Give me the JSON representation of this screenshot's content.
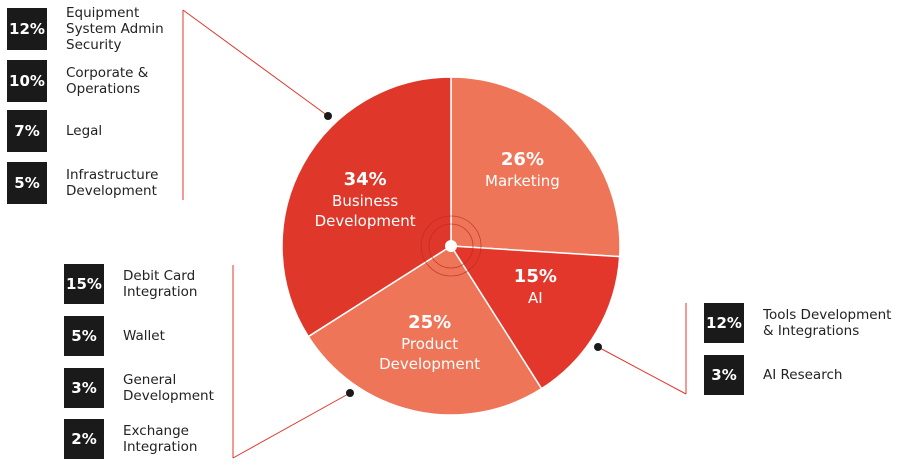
{
  "chart_data": {
    "type": "pie",
    "categories": [
      "Marketing",
      "AI",
      "Product Development",
      "Business Development"
    ],
    "values": [
      26,
      15,
      25,
      34
    ],
    "value_labels": [
      "26%",
      "15%",
      "25%",
      "34%"
    ],
    "colors": [
      "#ef7558",
      "#e3372b",
      "#ef7558",
      "#e0372b"
    ],
    "breakdowns": [
      {
        "labels": [
          "Equipment System Admin Security",
          "Corporate & Operations",
          "Legal",
          "Infrastructure Development"
        ],
        "values": [
          12,
          10,
          7,
          5
        ],
        "value_labels": [
          "12%",
          "10%",
          "7%",
          "5%"
        ]
      },
      {
        "labels": [
          "Debit Card Integration",
          "Wallet",
          "General Development",
          "Exchange Integration"
        ],
        "values": [
          15,
          5,
          3,
          2
        ],
        "value_labels": [
          "15%",
          "5%",
          "3%",
          "2%"
        ]
      },
      {
        "labels": [
          "Tools Development & Integrations",
          "AI Research"
        ],
        "values": [
          12,
          3
        ],
        "value_labels": [
          "12%",
          "3%"
        ]
      }
    ]
  }
}
